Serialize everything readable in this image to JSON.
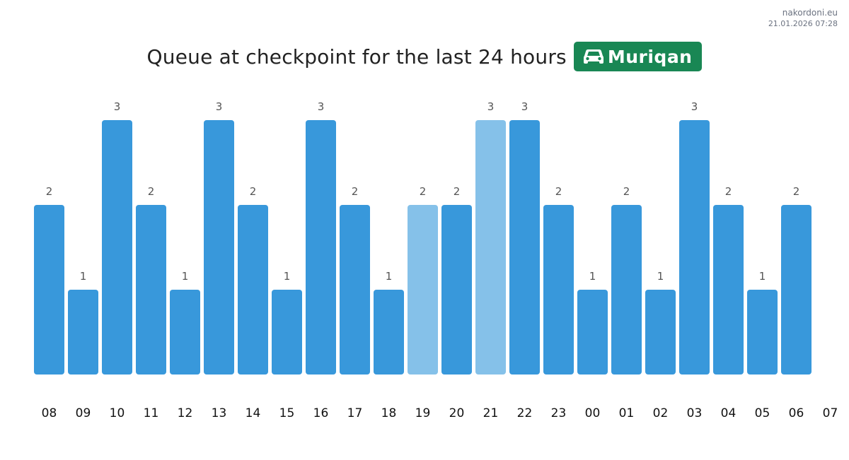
{
  "watermark": {
    "site": "nakordoni.eu",
    "timestamp": "21.01.2026 07:28"
  },
  "header": {
    "title": "Queue at checkpoint for the last 24 hours",
    "checkpoint_icon": "car-icon",
    "checkpoint_name": "Muriqan",
    "badge_color": "#198754"
  },
  "chart_data": {
    "type": "bar",
    "categories": [
      "08",
      "09",
      "10",
      "11",
      "12",
      "13",
      "14",
      "15",
      "16",
      "17",
      "18",
      "19",
      "20",
      "21",
      "22",
      "23",
      "00",
      "01",
      "02",
      "03",
      "04",
      "05",
      "06",
      "07"
    ],
    "values": [
      2,
      1,
      3,
      2,
      1,
      3,
      2,
      1,
      3,
      2,
      1,
      2,
      2,
      3,
      3,
      2,
      1,
      2,
      1,
      3,
      2,
      1,
      2,
      null
    ],
    "highlighted": [
      false,
      false,
      false,
      false,
      false,
      false,
      false,
      false,
      false,
      false,
      false,
      true,
      false,
      true,
      false,
      false,
      false,
      false,
      false,
      false,
      false,
      false,
      false,
      false
    ],
    "title": "Queue at checkpoint for the last 24 hours",
    "xlabel": "",
    "ylabel": "",
    "ylim": [
      0,
      3
    ],
    "grid": false,
    "legend": "none",
    "colors": {
      "bar": "#3898db",
      "bar_highlight": "#85c1e9",
      "value_label": "#555555",
      "tick_label": "#111111"
    }
  }
}
